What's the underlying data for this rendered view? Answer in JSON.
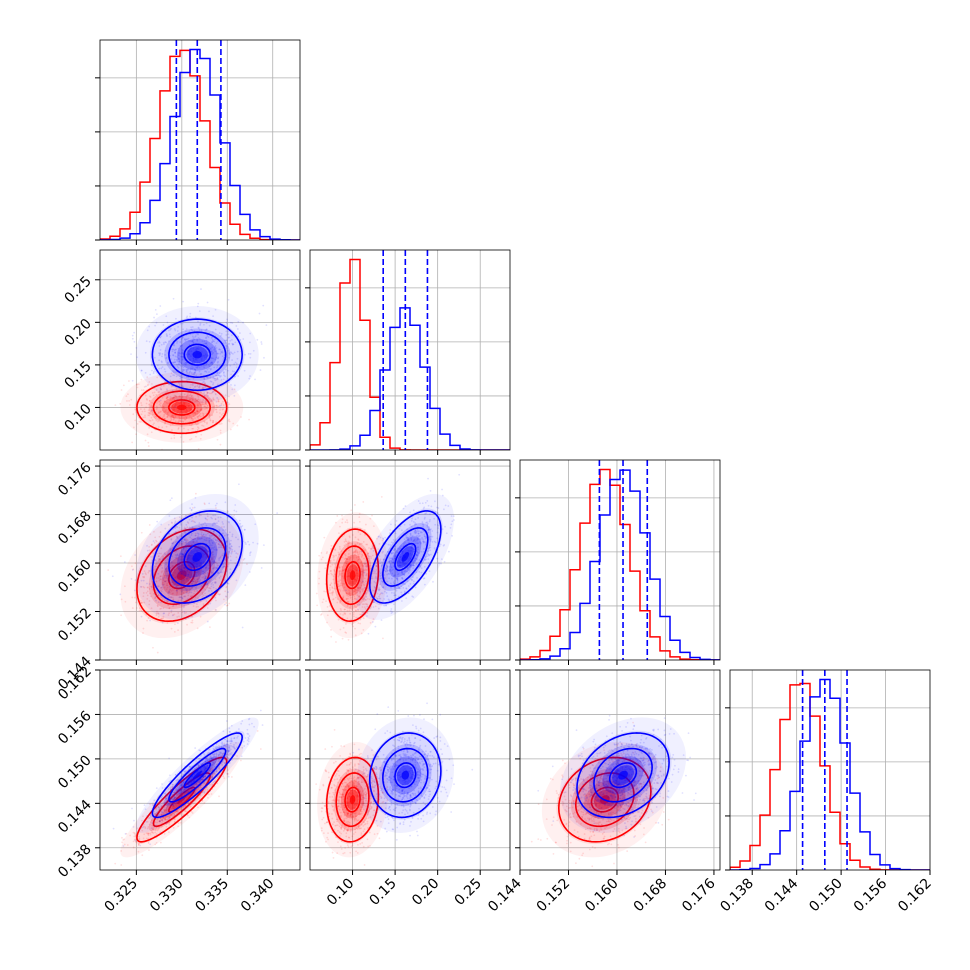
{
  "colors": {
    "red": "#ff0000",
    "blue": "#0000ff",
    "grid": "#b0b0b0",
    "axis": "#000000"
  },
  "chart_data": [
    {
      "type": "corner",
      "grid": true,
      "params": [
        {
          "range": [
            0.321,
            0.343
          ],
          "ticks": [
            "0.325",
            "0.330",
            "0.335",
            "0.340"
          ],
          "tick_values": [
            0.325,
            0.33,
            0.335,
            0.34
          ]
        },
        {
          "range": [
            0.05,
            0.285
          ],
          "ticks": [
            "0.10",
            "0.15",
            "0.20",
            "0.25"
          ],
          "tick_values": [
            0.1,
            0.15,
            0.2,
            0.25
          ]
        },
        {
          "range": [
            0.144,
            0.177
          ],
          "ticks": [
            "0.144",
            "0.152",
            "0.160",
            "0.168",
            "0.176"
          ],
          "tick_values": [
            0.144,
            0.152,
            0.16,
            0.168,
            0.176
          ]
        },
        {
          "range": [
            0.135,
            0.162
          ],
          "ticks": [
            "0.138",
            "0.144",
            "0.150",
            "0.156",
            "0.162"
          ],
          "tick_values": [
            0.138,
            0.144,
            0.15,
            0.156,
            0.162
          ]
        }
      ],
      "series": [
        {
          "color": "red",
          "mean": [
            0.33,
            0.1,
            0.158,
            0.1445
          ],
          "sd": [
            0.0026,
            0.016,
            0.004,
            0.003
          ],
          "corr": [
            [
              0,
              1,
              0.0
            ],
            [
              0,
              2,
              0.3
            ],
            [
              0,
              3,
              0.9
            ],
            [
              1,
              2,
              0.1
            ],
            [
              1,
              3,
              0.1
            ],
            [
              2,
              3,
              0.2
            ]
          ]
        },
        {
          "color": "blue",
          "mean": [
            0.3317,
            0.162,
            0.161,
            0.1478
          ],
          "sd": [
            0.0026,
            0.022,
            0.004,
            0.003
          ],
          "corr": [
            [
              0,
              1,
              0.0
            ],
            [
              0,
              2,
              0.3
            ],
            [
              0,
              3,
              0.9
            ],
            [
              1,
              2,
              0.6
            ],
            [
              1,
              3,
              0.1
            ],
            [
              2,
              3,
              0.3
            ]
          ]
        }
      ],
      "quantile_lines": [
        [
          0.3294,
          0.3317,
          0.3343
        ],
        [
          0.136,
          0.162,
          0.188
        ],
        [
          0.1571,
          0.161,
          0.165
        ],
        [
          0.1448,
          0.1478,
          0.1508
        ]
      ]
    }
  ]
}
